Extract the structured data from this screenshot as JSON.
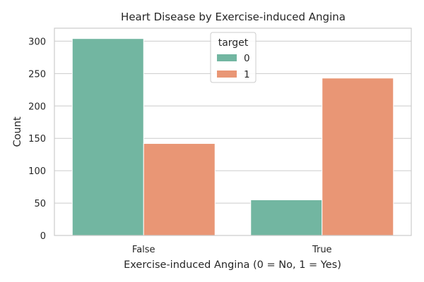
{
  "chart_data": {
    "type": "bar",
    "title": "Heart Disease by Exercise-induced Angina",
    "xlabel": "Exercise-induced Angina (0 = No, 1 = Yes)",
    "ylabel": "Count",
    "categories": [
      "False",
      "True"
    ],
    "series": [
      {
        "name": "0",
        "values": [
          304,
          55
        ],
        "color": "#72b6a1"
      },
      {
        "name": "1",
        "values": [
          142,
          243
        ],
        "color": "#e99675"
      }
    ],
    "ylim": [
      0,
      320
    ],
    "yticks": [
      0,
      50,
      100,
      150,
      200,
      250,
      300
    ],
    "grid": true,
    "legend": {
      "title": "target",
      "placement": "top-center"
    }
  }
}
